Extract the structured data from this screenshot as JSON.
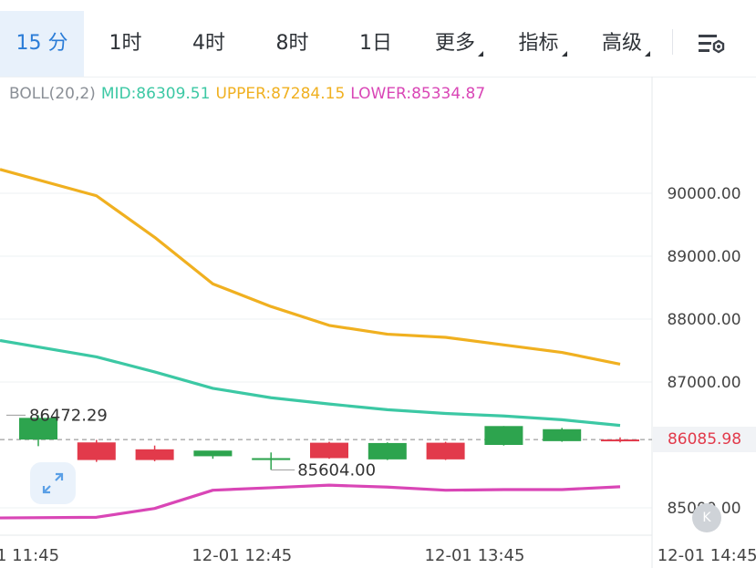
{
  "tabs": [
    {
      "label": "15 分",
      "active": true
    },
    {
      "label": "1时"
    },
    {
      "label": "4时"
    },
    {
      "label": "8时"
    },
    {
      "label": "1日"
    },
    {
      "label": "更多",
      "dropdown": true
    },
    {
      "label": "指标",
      "dropdown": true
    },
    {
      "label": "高级",
      "dropdown": true
    }
  ],
  "settings_icon": "chart-settings-icon",
  "legend": {
    "indicator": "BOLL(20,2)",
    "mid": "MID:86309.51",
    "upper": "UPPER:87284.15",
    "lower": "LOWER:85334.87"
  },
  "current_price": "86085.98",
  "expand_icon": "expand-icon",
  "k_button": "K",
  "colors": {
    "up": "#2da44e",
    "down": "#e23a4b",
    "mid": "#3cc8a4",
    "upper": "#f0b020",
    "lower": "#d946b6",
    "active_tab": "#2a7cd7",
    "legend_label": "#8a8f96"
  },
  "chart_data": {
    "type": "candlestick",
    "y_range": [
      84600,
      90800
    ],
    "y_ticks": [
      {
        "value": 90000,
        "label": "90000.00"
      },
      {
        "value": 89000,
        "label": "89000.00"
      },
      {
        "value": 88000,
        "label": "88000.00"
      },
      {
        "value": 87000,
        "label": "87000.00"
      },
      {
        "value": 85000,
        "label": "85000.00"
      }
    ],
    "x_range": [
      0,
      11
    ],
    "x_ticks": [
      {
        "value": -0.5,
        "label": "12-01 11:45"
      },
      {
        "value": 3.5,
        "label": "12-01 12:45"
      },
      {
        "value": 7.5,
        "label": "12-01 13:45"
      },
      {
        "value": 11.5,
        "label": "12-01 14:45"
      }
    ],
    "candles": [
      {
        "o": 86085,
        "h": 86472.29,
        "c": 86430,
        "l": 85980
      },
      {
        "o": 86040,
        "h": 86080,
        "c": 85760,
        "l": 85730
      },
      {
        "o": 85930,
        "h": 85990,
        "c": 85760,
        "l": 85740
      },
      {
        "o": 85820,
        "h": 85880,
        "c": 85910,
        "l": 85780
      },
      {
        "o": 85760,
        "h": 85880,
        "c": 85790,
        "l": 85604.0
      },
      {
        "o": 86035,
        "h": 86050,
        "c": 85790,
        "l": 85780
      },
      {
        "o": 85770,
        "h": 86040,
        "c": 86030,
        "l": 85760
      },
      {
        "o": 86035,
        "h": 86050,
        "c": 85770,
        "l": 85760
      },
      {
        "o": 86000,
        "h": 86300,
        "c": 86300,
        "l": 85990
      },
      {
        "o": 86060,
        "h": 86270,
        "c": 86250,
        "l": 86050
      },
      {
        "o": 86085.98,
        "h": 86120,
        "c": 86070,
        "l": 86040
      }
    ],
    "boll_upper": [
      90380,
      89960,
      89300,
      88560,
      88200,
      87900,
      87760,
      87710,
      87590,
      87470,
      87284.15
    ],
    "boll_mid": [
      87660,
      87400,
      87160,
      86900,
      86750,
      86650,
      86560,
      86500,
      86460,
      86400,
      86309.51
    ],
    "boll_lower": [
      84840,
      84850,
      84990,
      85280,
      85320,
      85360,
      85330,
      85280,
      85290,
      85290,
      85334.87
    ],
    "high_annotation": {
      "index": 0,
      "label": "86472.29"
    },
    "low_annotation": {
      "index": 4,
      "label": "85604.00"
    }
  }
}
